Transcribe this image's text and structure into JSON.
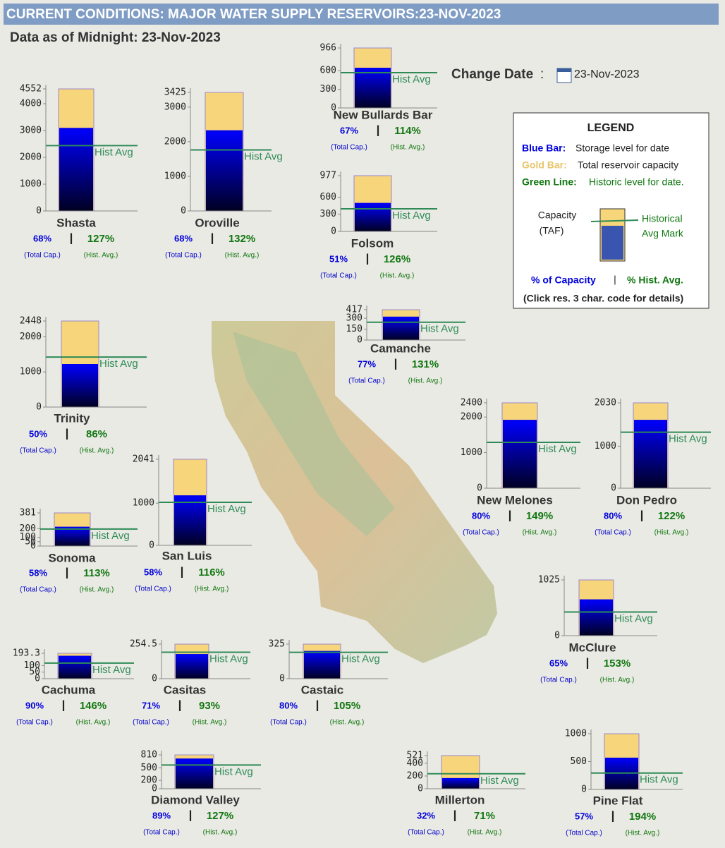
{
  "header": {
    "title": "CURRENT CONDITIONS: MAJOR WATER SUPPLY RESERVOIRS:23-NOV-2023",
    "subtitle": "Data as of Midnight: 23-Nov-2023",
    "change_date_label": "Change Date",
    "change_date_colon": ":",
    "change_date": "23-Nov-2023"
  },
  "colors": {
    "capacity": "#f7d57a",
    "storage": "#0000ee",
    "hist": "#2e8b57"
  },
  "separator": "|",
  "legend": {
    "title": "LEGEND",
    "blue_key": "Blue Bar:",
    "blue_text": "Storage level for date",
    "gold_key": "Gold Bar:",
    "gold_text": "Total reservoir capacity",
    "green_key": "Green Line:",
    "green_text": "Historic level for date.",
    "capacity": "Capacity",
    "taf": "(TAF)",
    "historical": "Historical",
    "avg_mark": "Avg Mark",
    "pct_capacity": "% of Capacity",
    "pct_hist": "% Hist. Avg.",
    "click_note": "(Click res. 3 char. code for details)"
  },
  "chart_data": [
    {
      "type": "bar",
      "title": "Shasta",
      "capacity": 4552,
      "storage": 3095,
      "hist_avg": 2437,
      "ylim": [
        0,
        4552
      ],
      "yticks": [
        0,
        1000,
        2000,
        3000,
        4000,
        4552
      ],
      "hist_label": "Hist Avg",
      "pct_capacity": "68%",
      "pct_hist": "127%",
      "cap_note": "(Total Cap.)",
      "hist_note": "(Hist. Avg.)"
    },
    {
      "type": "bar",
      "title": "Oroville",
      "capacity": 3425,
      "storage": 2329,
      "hist_avg": 1764,
      "ylim": [
        0,
        3425
      ],
      "yticks": [
        0,
        1000,
        2000,
        3000,
        3425
      ],
      "hist_label": "Hist Avg",
      "pct_capacity": "68%",
      "pct_hist": "132%",
      "cap_note": "(Total Cap.)",
      "hist_note": "(Hist. Avg.)"
    },
    {
      "type": "bar",
      "title": "New Bullards Bar",
      "capacity": 966,
      "storage": 647,
      "hist_avg": 568,
      "ylim": [
        0,
        966
      ],
      "yticks": [
        0,
        300,
        600,
        966
      ],
      "hist_label": "Hist Avg",
      "pct_capacity": "67%",
      "pct_hist": "114%",
      "cap_note": "(Total Cap.)",
      "hist_note": "(Hist. Avg.)"
    },
    {
      "type": "bar",
      "title": "Folsom",
      "capacity": 977,
      "storage": 498,
      "hist_avg": 395,
      "ylim": [
        0,
        977
      ],
      "yticks": [
        0,
        300,
        600,
        977
      ],
      "hist_label": "Hist Avg",
      "pct_capacity": "51%",
      "pct_hist": "126%",
      "cap_note": "(Total Cap.)",
      "hist_note": "(Hist. Avg.)"
    },
    {
      "type": "bar",
      "title": "Trinity",
      "capacity": 2448,
      "storage": 1224,
      "hist_avg": 1423,
      "ylim": [
        0,
        2448
      ],
      "yticks": [
        0,
        1000,
        2000,
        2448
      ],
      "hist_label": "Hist Avg",
      "pct_capacity": "50%",
      "pct_hist": "86%",
      "cap_note": "(Total Cap.)",
      "hist_note": "(Hist. Avg.)"
    },
    {
      "type": "bar",
      "title": "Camanche",
      "capacity": 417,
      "storage": 321,
      "hist_avg": 245,
      "ylim": [
        0,
        417
      ],
      "yticks": [
        0,
        150,
        300,
        417
      ],
      "hist_label": "Hist Avg",
      "pct_capacity": "77%",
      "pct_hist": "131%",
      "cap_note": "(Total Cap.)",
      "hist_note": "(Hist. Avg.)"
    },
    {
      "type": "bar",
      "title": "New Melones",
      "capacity": 2400,
      "storage": 1920,
      "hist_avg": 1289,
      "ylim": [
        0,
        2400
      ],
      "yticks": [
        0,
        1000,
        2000,
        2400
      ],
      "hist_label": "Hist Avg",
      "pct_capacity": "80%",
      "pct_hist": "149%",
      "cap_note": "(Total Cap.)",
      "hist_note": "(Hist. Avg.)"
    },
    {
      "type": "bar",
      "title": "Don Pedro",
      "capacity": 2030,
      "storage": 1624,
      "hist_avg": 1331,
      "ylim": [
        0,
        2030
      ],
      "yticks": [
        0,
        1000,
        2030
      ],
      "hist_label": "Hist Avg",
      "pct_capacity": "80%",
      "pct_hist": "122%",
      "cap_note": "(Total Cap.)",
      "hist_note": "(Hist. Avg.)"
    },
    {
      "type": "bar",
      "title": "Sonoma",
      "capacity": 381,
      "storage": 221,
      "hist_avg": 196,
      "ylim": [
        0,
        381
      ],
      "yticks": [
        0,
        50,
        100,
        200,
        381
      ],
      "hist_label": "Hist Avg",
      "pct_capacity": "58%",
      "pct_hist": "113%",
      "cap_note": "(Total Cap.)",
      "hist_note": "(Hist. Avg.)"
    },
    {
      "type": "bar",
      "title": "San Luis",
      "capacity": 2041,
      "storage": 1184,
      "hist_avg": 1021,
      "ylim": [
        0,
        2041
      ],
      "yticks": [
        0,
        1000,
        2041
      ],
      "hist_label": "Hist Avg",
      "pct_capacity": "58%",
      "pct_hist": "116%",
      "cap_note": "(Total Cap.)",
      "hist_note": "(Hist. Avg.)"
    },
    {
      "type": "bar",
      "title": "McClure",
      "capacity": 1025,
      "storage": 666,
      "hist_avg": 435,
      "ylim": [
        0,
        1025
      ],
      "yticks": [
        0,
        1025
      ],
      "hist_label": "Hist Avg",
      "pct_capacity": "65%",
      "pct_hist": "153%",
      "cap_note": "(Total Cap.)",
      "hist_note": "(Hist. Avg.)"
    },
    {
      "type": "bar",
      "title": "Cachuma",
      "capacity": 193.3,
      "storage": 174,
      "hist_avg": 119,
      "ylim": [
        0,
        193.3
      ],
      "yticks": [
        0,
        50,
        100,
        193.3
      ],
      "hist_label": "Hist Avg",
      "pct_capacity": "90%",
      "pct_hist": "146%",
      "cap_note": "(Total Cap.)",
      "hist_note": "(Hist. Avg.)"
    },
    {
      "type": "bar",
      "title": "Casitas",
      "capacity": 254.5,
      "storage": 181,
      "hist_avg": 195,
      "ylim": [
        0,
        254.5
      ],
      "yticks": [
        0,
        254.5
      ],
      "hist_label": "Hist Avg",
      "pct_capacity": "71%",
      "pct_hist": "93%",
      "cap_note": "(Total Cap.)",
      "hist_note": "(Hist. Avg.)"
    },
    {
      "type": "bar",
      "title": "Castaic",
      "capacity": 325,
      "storage": 260,
      "hist_avg": 248,
      "ylim": [
        0,
        325
      ],
      "yticks": [
        0,
        325
      ],
      "hist_label": "Hist Avg",
      "pct_capacity": "80%",
      "pct_hist": "105%",
      "cap_note": "(Total Cap.)",
      "hist_note": "(Hist. Avg.)"
    },
    {
      "type": "bar",
      "title": "Diamond Valley",
      "capacity": 810,
      "storage": 721,
      "hist_avg": 568,
      "ylim": [
        0,
        810
      ],
      "yticks": [
        0,
        200,
        500,
        810
      ],
      "hist_label": "Hist Avg",
      "pct_capacity": "89%",
      "pct_hist": "127%",
      "cap_note": "(Total Cap.)",
      "hist_note": "(Hist. Avg.)"
    },
    {
      "type": "bar",
      "title": "Millerton",
      "capacity": 521,
      "storage": 167,
      "hist_avg": 235,
      "ylim": [
        0,
        521
      ],
      "yticks": [
        0,
        200,
        400,
        521
      ],
      "hist_label": "Hist Avg",
      "pct_capacity": "32%",
      "pct_hist": "71%",
      "cap_note": "(Total Cap.)",
      "hist_note": "(Hist. Avg.)"
    },
    {
      "type": "bar",
      "title": "Pine Flat",
      "capacity": 1000,
      "storage": 570,
      "hist_avg": 294,
      "ylim": [
        0,
        1000
      ],
      "yticks": [
        0,
        500,
        1000
      ],
      "hist_label": "Hist Avg",
      "pct_capacity": "57%",
      "pct_hist": "194%",
      "cap_note": "(Total Cap.)",
      "hist_note": "(Hist. Avg.)"
    }
  ]
}
